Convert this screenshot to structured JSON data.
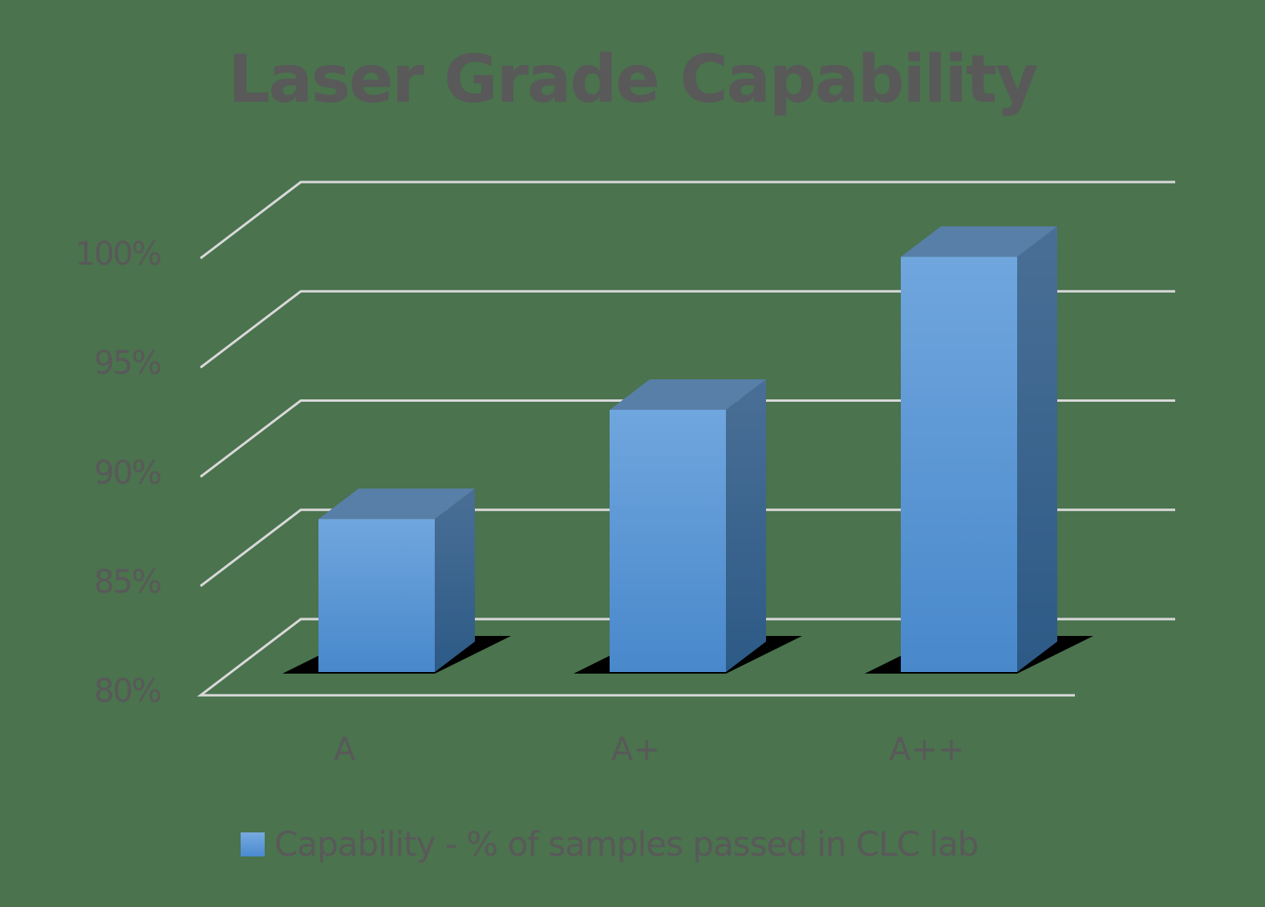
{
  "chart_data": {
    "type": "bar",
    "title": "Laser Grade Capability",
    "categories": [
      "A",
      "A+",
      "A++"
    ],
    "series": [
      {
        "name": "Capability - % of samples passed in CLC lab",
        "values": [
          87,
          92,
          99
        ]
      }
    ],
    "yticks": [
      "80%",
      "85%",
      "90%",
      "95%",
      "100%"
    ],
    "ylim": [
      80,
      100
    ],
    "xlabel": "",
    "ylabel": "",
    "grid": true,
    "legend_position": "bottom",
    "style": "3d-column",
    "colors": {
      "bar": "#5b9bd5",
      "background": "#4a734e",
      "gridline": "#d9d9d9",
      "text": "#595959"
    }
  }
}
